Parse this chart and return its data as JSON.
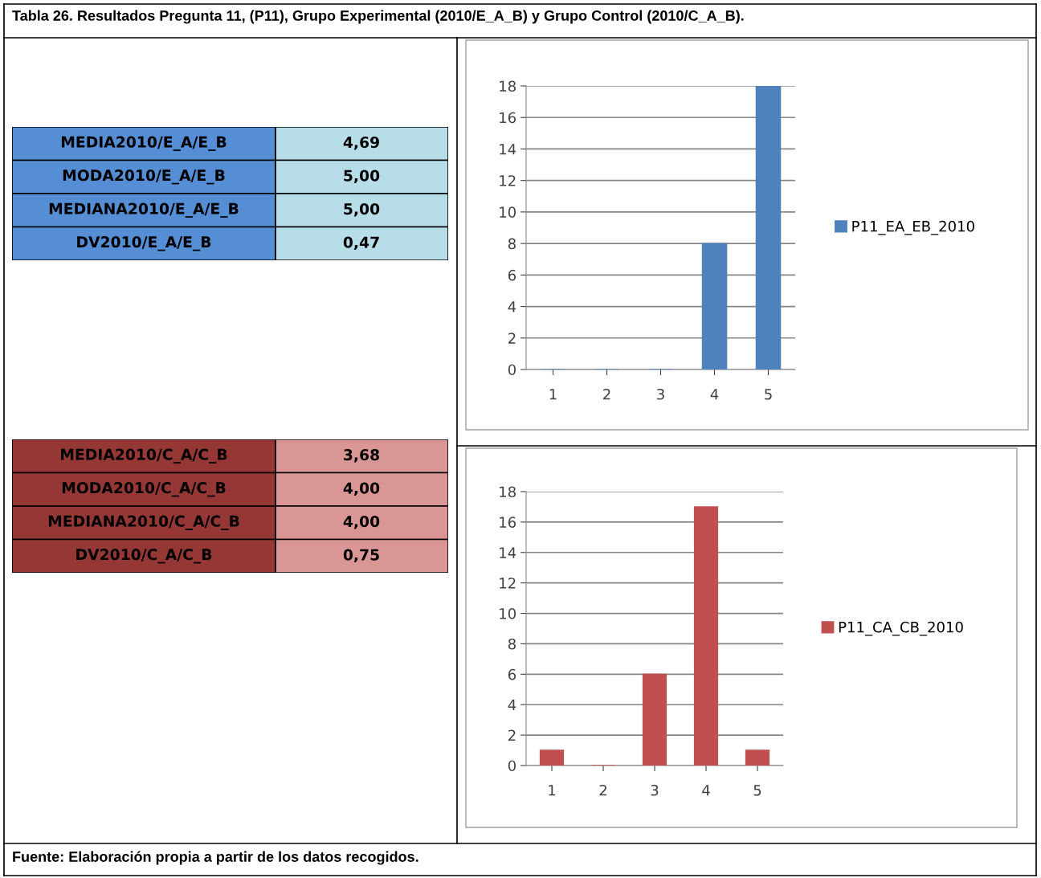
{
  "chart_data": [
    {
      "type": "other",
      "title": "Tabla 26. Resultados Pregunta 11, (P11), Grupo Experimental (2010/E_A_B) y Grupo Control (2010/C_A_B).",
      "colors": [
        "#558ed5",
        "#b7dee8"
      ],
      "annotations": [
        "MEDIA2010/E_A/E_B",
        "4,69",
        "MODA2010/E_A/E_B",
        "5,00",
        "MEDIANA2010/E_A/E_B",
        "5,00",
        "DV2010/E_A/E_B",
        "0,47"
      ]
    },
    {
      "type": "bar",
      "categories": [
        "1",
        "2",
        "3",
        "4",
        "5"
      ],
      "ylim": [
        0,
        18
      ],
      "yticks": [
        0,
        2,
        4,
        6,
        8,
        10,
        12,
        14,
        16,
        18
      ],
      "grid": "y",
      "legend": "right",
      "series": [
        {
          "name": "P11_EA_EB_2010",
          "color": "#4f81bd",
          "values": [
            0,
            0,
            0,
            8,
            18
          ]
        }
      ]
    },
    {
      "type": "other",
      "colors": [
        "#953735",
        "#d99694"
      ],
      "annotations": [
        "MEDIA2010/C_A/C_B",
        "3,68",
        "MODA2010/C_A/C_B",
        "4,00",
        "MEDIANA2010/C_A/C_B",
        "4,00",
        "DV2010/C_A/C_B",
        "0,75"
      ]
    },
    {
      "type": "bar",
      "categories": [
        "1",
        "2",
        "3",
        "4",
        "5"
      ],
      "ylim": [
        0,
        18
      ],
      "yticks": [
        0,
        2,
        4,
        6,
        8,
        10,
        12,
        14,
        16,
        18
      ],
      "grid": "y",
      "legend": "right",
      "series": [
        {
          "name": "P11_CA_CB_2010",
          "color": "#c0504d",
          "values": [
            1,
            0,
            6,
            17,
            1
          ]
        }
      ],
      "annotations": [
        "Fuente: Elaboración propia a partir de los datos recogidos."
      ]
    }
  ]
}
